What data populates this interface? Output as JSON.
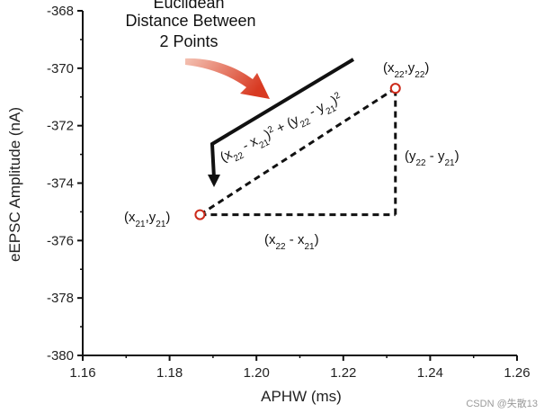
{
  "chart_data": {
    "type": "scatter",
    "title_lines": [
      "Euclidean",
      "Distance Between",
      "2 Points"
    ],
    "xlabel": "APHW (ms)",
    "ylabel": "eEPSC Amplitude (nA)",
    "xlim": [
      1.16,
      1.26
    ],
    "ylim": [
      -380,
      -368
    ],
    "xticks": [
      "1.16",
      "1.18",
      "1.20",
      "1.22",
      "1.24",
      "1.26"
    ],
    "yticks": [
      "-368",
      "-370",
      "-372",
      "-374",
      "-376",
      "-378",
      "-380"
    ],
    "points": [
      {
        "x": 1.187,
        "y": -375.1
      },
      {
        "x": 1.232,
        "y": -370.7
      }
    ],
    "annotations": {
      "p1_label": {
        "base1": "(x",
        "sub1": "21",
        "mid": ",y",
        "sub2": "21",
        "end": ")"
      },
      "p2_label": {
        "base1": "(x",
        "sub1": "22",
        "mid": ",y",
        "sub2": "22",
        "end": ")"
      },
      "dx_label": {
        "base1": "(x",
        "sub1": "22",
        "mid": " - x",
        "sub2": "21",
        "end": ")"
      },
      "dy_label": {
        "base1": "(y",
        "sub1": "22",
        "mid": " - y",
        "sub2": "21",
        "end": ")"
      },
      "formula": {
        "a1": "(x",
        "a1s": "22",
        "a2": " - x",
        "a2s": "21",
        "a3": ")",
        "a3p": "2",
        "plus": " + ",
        "b1": "(y",
        "b1s": "22",
        "b2": " - y",
        "b2s": "21",
        "b3": ")",
        "b3p": "2"
      }
    },
    "marker_color": "#cc2a1a",
    "arrow_color": "#d94a2a",
    "line_color": "#111111"
  },
  "watermark": "CSDN @失散13"
}
